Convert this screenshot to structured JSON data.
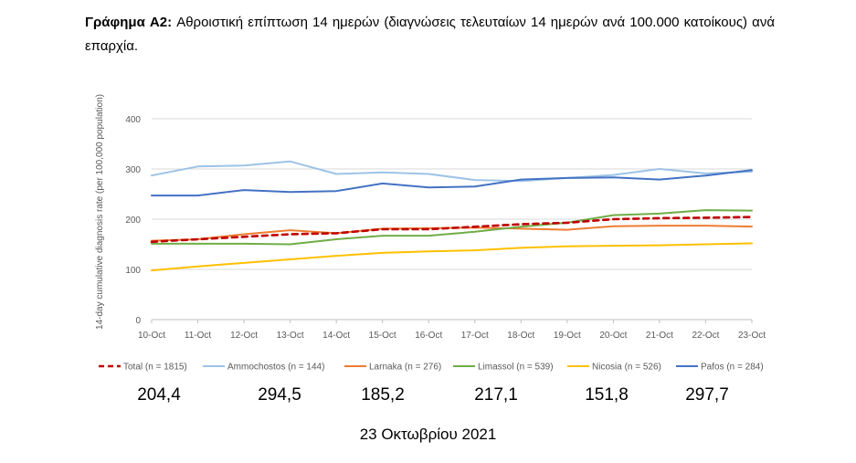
{
  "caption": {
    "label": "Γράφημα A2:",
    "text": "Αθροιστική επίπτωση 14 ημερών (διαγνώσεις τελευταίων 14 ημερών ανά 100.000 κατοίκους) ανά επαρχία."
  },
  "chart_data": {
    "type": "line",
    "title": "",
    "xlabel": "",
    "ylabel": "14-day cumulative diagnosis rate (per 100,000 population)",
    "ylim": [
      0,
      400
    ],
    "yticks": [
      0,
      100,
      200,
      300,
      400
    ],
    "grid": true,
    "legend_position": "bottom",
    "categories": [
      "10-Oct",
      "11-Oct",
      "12-Oct",
      "13-Oct",
      "14-Oct",
      "15-Oct",
      "16-Oct",
      "17-Oct",
      "18-Oct",
      "19-Oct",
      "20-Oct",
      "21-Oct",
      "22-Oct",
      "23-Oct"
    ],
    "series": [
      {
        "name": "Total (n = 1815)",
        "color": "#c00000",
        "dashed": true,
        "values": [
          155,
          160,
          165,
          170,
          172,
          180,
          180,
          185,
          190,
          193,
          200,
          202,
          203,
          204.4
        ]
      },
      {
        "name": "Ammochostos (n = 144)",
        "color": "#9dc3e6",
        "dashed": false,
        "values": [
          287,
          305,
          307,
          315,
          290,
          293,
          290,
          278,
          276,
          282,
          288,
          300,
          291,
          294.5
        ]
      },
      {
        "name": "Larnaka (n = 276)",
        "color": "#ed7d31",
        "dashed": false,
        "values": [
          157,
          160,
          170,
          178,
          172,
          181,
          182,
          183,
          181,
          179,
          186,
          187,
          187,
          185.2
        ]
      },
      {
        "name": "Limassol (n = 539)",
        "color": "#70ad47",
        "dashed": false,
        "values": [
          151,
          151,
          151,
          150,
          160,
          167,
          167,
          175,
          185,
          193,
          208,
          211,
          218,
          217.1
        ]
      },
      {
        "name": "Nicosia (n = 526)",
        "color": "#ffc000",
        "dashed": false,
        "values": [
          98,
          106,
          113,
          120,
          127,
          133,
          136,
          138,
          143,
          146,
          147,
          148,
          150,
          151.8
        ]
      },
      {
        "name": "Pafos (n = 284)",
        "color": "#4472c4",
        "dashed": false,
        "values": [
          247,
          247,
          258,
          254,
          256,
          271,
          263,
          265,
          279,
          282,
          283,
          279,
          287,
          297.7
        ]
      }
    ]
  },
  "latest_values": [
    {
      "value": "204,4"
    },
    {
      "value": "294,5"
    },
    {
      "value": "185,2"
    },
    {
      "value": "217,1"
    },
    {
      "value": "151,8"
    },
    {
      "value": "297,7"
    }
  ],
  "date_label": "23 Οκτωβρίου 2021"
}
